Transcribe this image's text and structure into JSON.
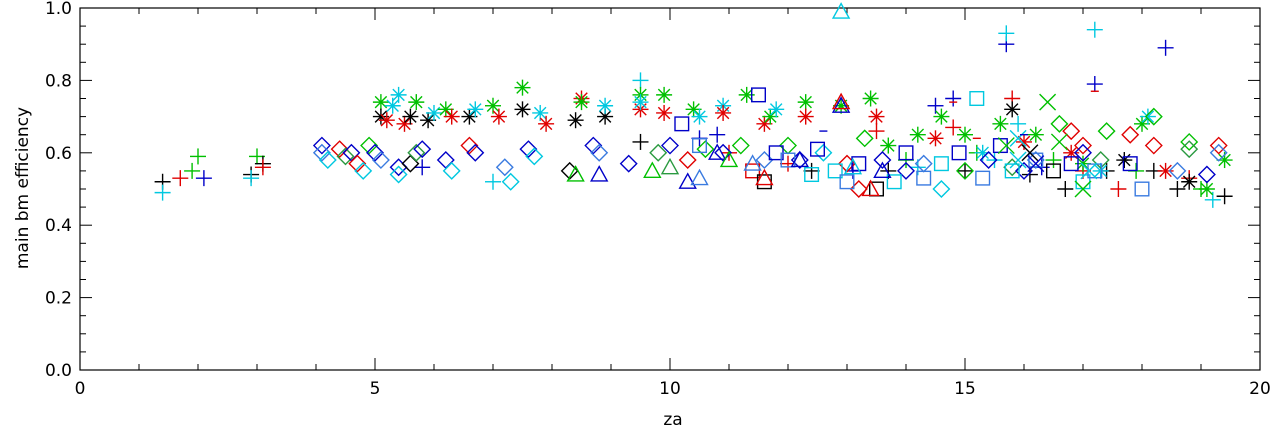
{
  "chart_data": {
    "type": "scatter",
    "title": "",
    "xlabel": "za",
    "ylabel": "main bm efficiency",
    "xlim": [
      0,
      20
    ],
    "ylim": [
      0.0,
      1.0
    ],
    "xticks": [
      0,
      5,
      10,
      15,
      20
    ],
    "xtick_labels": [
      "0",
      "5",
      "10",
      "15",
      "20"
    ],
    "yticks": [
      0.0,
      0.2,
      0.4,
      0.6,
      0.8,
      1.0
    ],
    "ytick_labels": [
      "0.0",
      "0.2",
      "0.4",
      "0.6",
      "0.8",
      "1.0"
    ],
    "grid": false,
    "legend": "none",
    "colors": [
      "#000000",
      "#e00000",
      "#00c000",
      "#0000c8",
      "#00c8e0",
      "#3a7be0",
      "#2a9a40"
    ],
    "series": [
      {
        "marker": "plus",
        "points": [
          [
            1.4,
            0.52,
            0
          ],
          [
            1.4,
            0.49,
            4
          ],
          [
            1.7,
            0.53,
            1
          ],
          [
            1.9,
            0.55,
            2
          ],
          [
            2.0,
            0.59,
            2
          ],
          [
            2.1,
            0.53,
            3
          ],
          [
            2.9,
            0.54,
            0
          ],
          [
            2.9,
            0.53,
            4
          ],
          [
            3.0,
            0.59,
            2
          ],
          [
            3.1,
            0.57,
            0
          ],
          [
            3.1,
            0.56,
            1
          ],
          [
            5.8,
            0.56,
            3
          ],
          [
            7.0,
            0.52,
            4
          ],
          [
            9.5,
            0.63,
            0
          ],
          [
            9.5,
            0.8,
            4
          ],
          [
            10.5,
            0.64,
            3
          ],
          [
            10.8,
            0.65,
            3
          ],
          [
            11.0,
            0.6,
            1
          ],
          [
            12.0,
            0.57,
            1
          ],
          [
            12.4,
            0.55,
            0
          ],
          [
            13.1,
            0.55,
            3
          ],
          [
            13.5,
            0.66,
            1
          ],
          [
            13.7,
            0.55,
            0
          ],
          [
            14.0,
            0.58,
            2
          ],
          [
            14.2,
            0.56,
            4
          ],
          [
            14.5,
            0.73,
            3
          ],
          [
            14.8,
            0.75,
            3
          ],
          [
            14.8,
            0.67,
            1
          ],
          [
            15.0,
            0.55,
            0
          ],
          [
            15.2,
            0.6,
            2
          ],
          [
            15.5,
            0.58,
            4
          ],
          [
            15.7,
            0.9,
            3
          ],
          [
            15.7,
            0.93,
            4
          ],
          [
            15.8,
            0.75,
            1
          ],
          [
            15.9,
            0.68,
            4
          ],
          [
            16.1,
            0.54,
            0
          ],
          [
            16.3,
            0.56,
            3
          ],
          [
            16.5,
            0.58,
            2
          ],
          [
            16.7,
            0.5,
            0
          ],
          [
            17.0,
            0.55,
            1
          ],
          [
            17.2,
            0.79,
            3
          ],
          [
            17.2,
            0.94,
            4
          ],
          [
            17.4,
            0.55,
            0
          ],
          [
            17.6,
            0.5,
            1
          ],
          [
            17.9,
            0.55,
            2
          ],
          [
            18.2,
            0.55,
            0
          ],
          [
            18.4,
            0.89,
            3
          ],
          [
            18.6,
            0.5,
            0
          ],
          [
            18.8,
            0.53,
            1
          ],
          [
            19.0,
            0.5,
            2
          ],
          [
            19.2,
            0.47,
            4
          ],
          [
            19.4,
            0.48,
            0
          ]
        ]
      },
      {
        "marker": "asterisk",
        "points": [
          [
            5.1,
            0.74,
            2
          ],
          [
            5.1,
            0.7,
            0
          ],
          [
            5.2,
            0.69,
            1
          ],
          [
            5.3,
            0.73,
            4
          ],
          [
            5.4,
            0.76,
            4
          ],
          [
            5.5,
            0.68,
            1
          ],
          [
            5.6,
            0.7,
            0
          ],
          [
            5.7,
            0.74,
            2
          ],
          [
            5.9,
            0.69,
            0
          ],
          [
            6.0,
            0.71,
            4
          ],
          [
            6.2,
            0.72,
            2
          ],
          [
            6.3,
            0.7,
            1
          ],
          [
            6.6,
            0.7,
            0
          ],
          [
            6.7,
            0.72,
            4
          ],
          [
            7.0,
            0.73,
            2
          ],
          [
            7.1,
            0.7,
            1
          ],
          [
            7.5,
            0.78,
            2
          ],
          [
            7.5,
            0.72,
            0
          ],
          [
            7.8,
            0.71,
            4
          ],
          [
            7.9,
            0.68,
            1
          ],
          [
            8.4,
            0.69,
            0
          ],
          [
            8.5,
            0.75,
            1
          ],
          [
            8.5,
            0.74,
            2
          ],
          [
            8.9,
            0.7,
            0
          ],
          [
            8.9,
            0.73,
            4
          ],
          [
            9.5,
            0.76,
            2
          ],
          [
            9.5,
            0.72,
            1
          ],
          [
            9.5,
            0.74,
            4
          ],
          [
            9.9,
            0.76,
            2
          ],
          [
            9.9,
            0.71,
            1
          ],
          [
            10.4,
            0.72,
            2
          ],
          [
            10.5,
            0.7,
            4
          ],
          [
            10.9,
            0.73,
            4
          ],
          [
            10.9,
            0.71,
            1
          ],
          [
            11.3,
            0.76,
            2
          ],
          [
            11.6,
            0.68,
            1
          ],
          [
            11.7,
            0.7,
            2
          ],
          [
            11.8,
            0.72,
            4
          ],
          [
            12.3,
            0.74,
            2
          ],
          [
            12.3,
            0.7,
            1
          ],
          [
            12.9,
            0.73,
            2
          ],
          [
            13.4,
            0.75,
            2
          ],
          [
            13.5,
            0.7,
            1
          ],
          [
            13.7,
            0.62,
            2
          ],
          [
            14.2,
            0.65,
            2
          ],
          [
            14.5,
            0.64,
            1
          ],
          [
            14.6,
            0.7,
            2
          ],
          [
            15.0,
            0.65,
            2
          ],
          [
            15.3,
            0.6,
            4
          ],
          [
            15.6,
            0.68,
            2
          ],
          [
            15.8,
            0.72,
            0
          ],
          [
            16.0,
            0.63,
            1
          ],
          [
            16.2,
            0.65,
            2
          ],
          [
            16.8,
            0.6,
            1
          ],
          [
            17.0,
            0.57,
            2
          ],
          [
            17.3,
            0.55,
            4
          ],
          [
            17.7,
            0.58,
            0
          ],
          [
            18.0,
            0.68,
            2
          ],
          [
            18.1,
            0.7,
            4
          ],
          [
            18.4,
            0.55,
            1
          ],
          [
            18.8,
            0.52,
            0
          ],
          [
            19.1,
            0.5,
            2
          ],
          [
            19.4,
            0.58,
            2
          ]
        ]
      },
      {
        "marker": "diamond",
        "points": [
          [
            4.1,
            0.62,
            3
          ],
          [
            4.1,
            0.6,
            5
          ],
          [
            4.2,
            0.58,
            4
          ],
          [
            4.4,
            0.61,
            1
          ],
          [
            4.5,
            0.59,
            6
          ],
          [
            4.6,
            0.6,
            3
          ],
          [
            4.7,
            0.57,
            1
          ],
          [
            4.8,
            0.55,
            4
          ],
          [
            4.9,
            0.62,
            2
          ],
          [
            5.0,
            0.6,
            3
          ],
          [
            5.1,
            0.58,
            5
          ],
          [
            5.4,
            0.56,
            3
          ],
          [
            5.4,
            0.54,
            4
          ],
          [
            5.6,
            0.57,
            0
          ],
          [
            5.7,
            0.6,
            6
          ],
          [
            5.8,
            0.61,
            3
          ],
          [
            6.2,
            0.58,
            3
          ],
          [
            6.3,
            0.55,
            4
          ],
          [
            6.6,
            0.62,
            1
          ],
          [
            6.7,
            0.6,
            3
          ],
          [
            7.2,
            0.56,
            5
          ],
          [
            7.3,
            0.52,
            4
          ],
          [
            7.6,
            0.61,
            3
          ],
          [
            7.7,
            0.59,
            4
          ],
          [
            8.3,
            0.55,
            0
          ],
          [
            8.7,
            0.62,
            3
          ],
          [
            8.8,
            0.6,
            5
          ],
          [
            9.3,
            0.57,
            3
          ],
          [
            9.8,
            0.6,
            6
          ],
          [
            10.0,
            0.62,
            3
          ],
          [
            10.3,
            0.58,
            1
          ],
          [
            10.6,
            0.61,
            2
          ],
          [
            10.9,
            0.6,
            3
          ],
          [
            11.2,
            0.62,
            2
          ],
          [
            11.6,
            0.58,
            5
          ],
          [
            12.0,
            0.62,
            2
          ],
          [
            12.2,
            0.58,
            3
          ],
          [
            12.6,
            0.6,
            4
          ],
          [
            13.0,
            0.57,
            1
          ],
          [
            13.2,
            0.5,
            1
          ],
          [
            13.3,
            0.64,
            2
          ],
          [
            13.6,
            0.58,
            3
          ],
          [
            14.0,
            0.55,
            3
          ],
          [
            14.3,
            0.57,
            5
          ],
          [
            14.6,
            0.5,
            4
          ],
          [
            15.0,
            0.55,
            2
          ],
          [
            15.4,
            0.58,
            3
          ],
          [
            15.8,
            0.56,
            6
          ],
          [
            16.0,
            0.55,
            3
          ],
          [
            16.2,
            0.58,
            5
          ],
          [
            16.6,
            0.68,
            2
          ],
          [
            16.8,
            0.66,
            1
          ],
          [
            17.0,
            0.62,
            1
          ],
          [
            17.0,
            0.6,
            3
          ],
          [
            17.3,
            0.58,
            6
          ],
          [
            17.4,
            0.66,
            2
          ],
          [
            17.8,
            0.65,
            1
          ],
          [
            18.2,
            0.7,
            2
          ],
          [
            18.2,
            0.62,
            1
          ],
          [
            18.6,
            0.55,
            5
          ],
          [
            18.8,
            0.63,
            2
          ],
          [
            18.8,
            0.61,
            6
          ],
          [
            19.1,
            0.54,
            3
          ],
          [
            19.3,
            0.62,
            1
          ],
          [
            19.3,
            0.6,
            5
          ]
        ]
      },
      {
        "marker": "square",
        "points": [
          [
            10.2,
            0.68,
            3
          ],
          [
            10.5,
            0.62,
            5
          ],
          [
            11.4,
            0.55,
            1
          ],
          [
            11.6,
            0.52,
            0
          ],
          [
            11.8,
            0.6,
            3
          ],
          [
            12.0,
            0.58,
            5
          ],
          [
            12.4,
            0.54,
            4
          ],
          [
            12.5,
            0.61,
            3
          ],
          [
            12.8,
            0.55,
            4
          ],
          [
            13.0,
            0.52,
            5
          ],
          [
            13.2,
            0.57,
            3
          ],
          [
            13.5,
            0.5,
            0
          ],
          [
            13.8,
            0.52,
            4
          ],
          [
            14.0,
            0.6,
            3
          ],
          [
            14.3,
            0.53,
            5
          ],
          [
            14.6,
            0.57,
            4
          ],
          [
            14.9,
            0.6,
            3
          ],
          [
            15.2,
            0.75,
            4
          ],
          [
            15.3,
            0.53,
            5
          ],
          [
            15.6,
            0.62,
            3
          ],
          [
            15.8,
            0.55,
            4
          ],
          [
            16.2,
            0.58,
            5
          ],
          [
            16.5,
            0.55,
            0
          ],
          [
            16.8,
            0.57,
            3
          ],
          [
            17.0,
            0.52,
            4
          ],
          [
            17.2,
            0.55,
            5
          ],
          [
            17.8,
            0.57,
            3
          ],
          [
            18.0,
            0.5,
            5
          ],
          [
            11.5,
            0.76,
            3
          ]
        ]
      },
      {
        "marker": "triangle",
        "points": [
          [
            8.4,
            0.54,
            2
          ],
          [
            8.8,
            0.54,
            3
          ],
          [
            9.7,
            0.55,
            2
          ],
          [
            10.0,
            0.56,
            6
          ],
          [
            10.3,
            0.52,
            3
          ],
          [
            10.5,
            0.53,
            5
          ],
          [
            10.8,
            0.6,
            3
          ],
          [
            11.0,
            0.58,
            2
          ],
          [
            11.4,
            0.57,
            5
          ],
          [
            11.6,
            0.53,
            1
          ],
          [
            12.2,
            0.58,
            3
          ],
          [
            12.9,
            0.73,
            3
          ],
          [
            12.9,
            0.74,
            1
          ],
          [
            13.1,
            0.56,
            4
          ],
          [
            13.4,
            0.5,
            1
          ],
          [
            13.6,
            0.55,
            3
          ],
          [
            12.9,
            0.99,
            4
          ]
        ]
      },
      {
        "marker": "x",
        "points": [
          [
            15.7,
            0.62,
            2
          ],
          [
            15.9,
            0.58,
            4
          ],
          [
            16.1,
            0.6,
            0
          ],
          [
            16.4,
            0.74,
            2
          ],
          [
            16.6,
            0.63,
            2
          ],
          [
            17.0,
            0.5,
            2
          ],
          [
            17.1,
            0.55,
            4
          ],
          [
            15.9,
            0.64,
            4
          ],
          [
            16.2,
            0.57,
            3
          ]
        ]
      },
      {
        "marker": "dash",
        "points": [
          [
            12.6,
            0.66,
            3
          ],
          [
            14.8,
            0.74,
            1
          ],
          [
            16.0,
            0.65,
            3
          ],
          [
            17.2,
            0.77,
            1
          ],
          [
            17.7,
            0.58,
            0
          ],
          [
            15.2,
            0.64,
            1
          ]
        ]
      }
    ]
  }
}
